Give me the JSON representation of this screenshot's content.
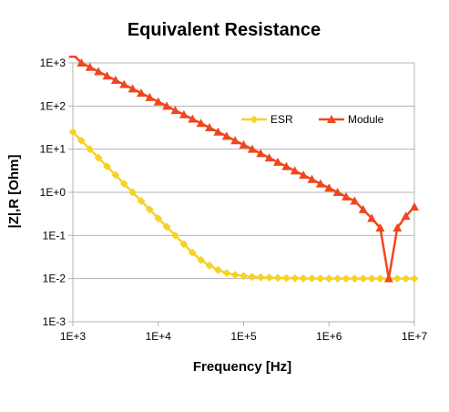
{
  "chart_data": {
    "type": "line",
    "title": "Equivalent Resistance",
    "xlabel": "Frequency [Hz]",
    "ylabel": "|Z|,R [Ohm]",
    "x_scale": "log",
    "y_scale": "log",
    "xlim": [
      1000,
      10000000
    ],
    "ylim": [
      0.001,
      1000
    ],
    "grid": "horizontal",
    "legend_position": "right",
    "x_ticks": [
      {
        "value": 1000,
        "label": "1E+3"
      },
      {
        "value": 10000,
        "label": "1E+4"
      },
      {
        "value": 100000,
        "label": "1E+5"
      },
      {
        "value": 1000000,
        "label": "1E+6"
      },
      {
        "value": 10000000,
        "label": "1E+7"
      }
    ],
    "y_ticks": [
      {
        "value": 1000,
        "label": "1E+3"
      },
      {
        "value": 100,
        "label": "1E+2"
      },
      {
        "value": 10,
        "label": "1E+1"
      },
      {
        "value": 1,
        "label": "1E+0"
      },
      {
        "value": 0.1,
        "label": "1E-1"
      },
      {
        "value": 0.01,
        "label": "1E-2"
      },
      {
        "value": 0.001,
        "label": "1E-3"
      }
    ],
    "series": [
      {
        "name": "ESR",
        "color": "#f5d328",
        "marker": "diamond",
        "x": [
          1000,
          1259,
          1585,
          1995,
          2512,
          3162,
          3981,
          5012,
          6310,
          7943,
          10000,
          12589,
          15849,
          19953,
          25119,
          31623,
          39811,
          50119,
          63096,
          79433,
          100000,
          125893,
          158489,
          199526,
          251189,
          316228,
          398107,
          501187,
          630957,
          794328,
          1000000,
          1258925,
          1584893,
          1995262,
          2511886,
          3162278,
          3981072,
          5011872,
          6309573,
          7943282,
          10000000
        ],
        "y": [
          25.1,
          15.8,
          10.0,
          6.3,
          3.98,
          2.51,
          1.58,
          1.0,
          0.63,
          0.4,
          0.25,
          0.158,
          0.1,
          0.063,
          0.04,
          0.027,
          0.02,
          0.0158,
          0.0135,
          0.0122,
          0.0115,
          0.011,
          0.0107,
          0.0105,
          0.0104,
          0.0103,
          0.0102,
          0.0101,
          0.0101,
          0.01,
          0.01,
          0.01,
          0.01,
          0.01,
          0.01,
          0.01,
          0.01,
          0.01,
          0.01,
          0.01,
          0.01
        ]
      },
      {
        "name": "Module",
        "color": "#f0461e",
        "marker": "triangle",
        "x": [
          1000,
          1259,
          1585,
          1995,
          2512,
          3162,
          3981,
          5012,
          6310,
          7943,
          10000,
          12589,
          15849,
          19953,
          25119,
          31623,
          39811,
          50119,
          63096,
          79433,
          100000,
          125893,
          158489,
          199526,
          251189,
          316228,
          398107,
          501187,
          630957,
          794328,
          1000000,
          1258925,
          1584893,
          1995262,
          2511886,
          3162278,
          3981072,
          5011872,
          6309573,
          7943282,
          10000000
        ],
        "y": [
          1590,
          1000,
          795,
          631,
          501,
          398,
          316,
          251,
          200,
          158,
          126,
          100,
          79.4,
          63.1,
          50.1,
          39.8,
          31.6,
          25.1,
          20.0,
          15.8,
          12.6,
          10.0,
          7.94,
          6.31,
          5.01,
          3.98,
          3.16,
          2.51,
          2.0,
          1.58,
          1.26,
          1.0,
          0.79,
          0.63,
          0.4,
          0.25,
          0.15,
          0.01,
          0.15,
          0.28,
          0.46
        ]
      }
    ]
  }
}
